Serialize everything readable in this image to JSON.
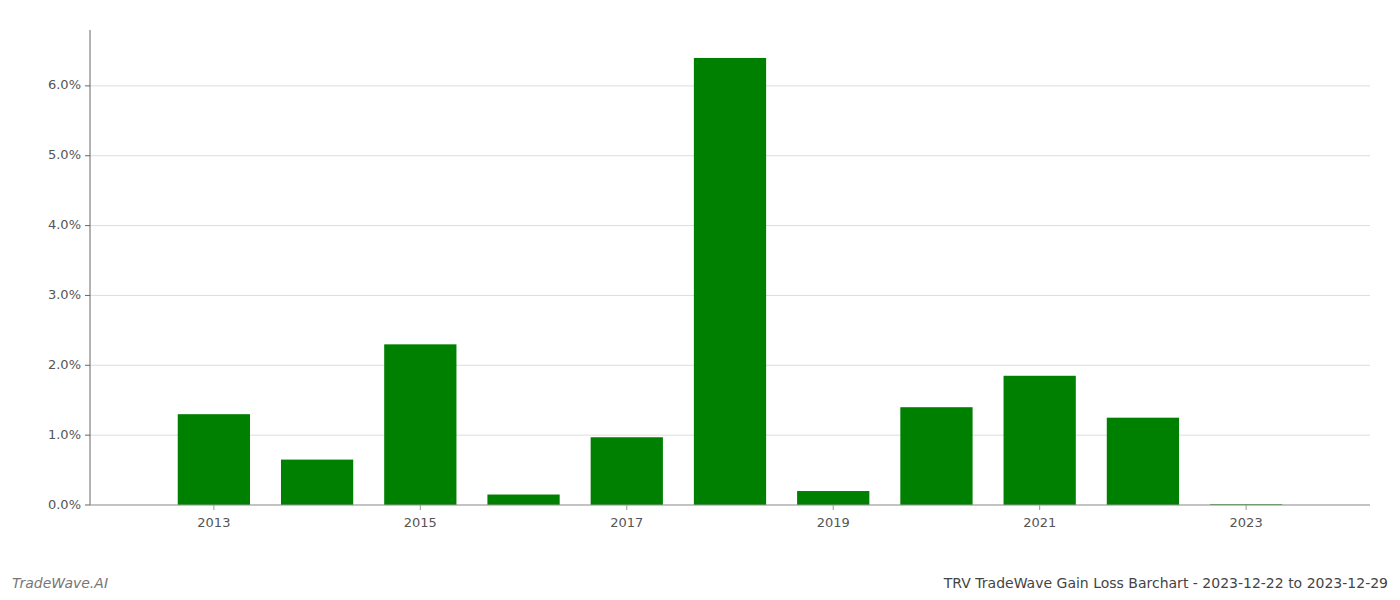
{
  "chart_data": {
    "type": "bar",
    "title": "TRV TradeWave Gain Loss Barchart - 2023-12-22 to 2023-12-29",
    "annotations": [
      "TradeWave.AI"
    ],
    "x": [
      2013,
      2014,
      2015,
      2016,
      2017,
      2018,
      2019,
      2020,
      2021,
      2022,
      2023
    ],
    "values": [
      0.013,
      0.0065,
      0.023,
      0.0015,
      0.0097,
      0.064,
      0.002,
      0.014,
      0.0185,
      0.0125,
      0.0001
    ],
    "color": "#008000",
    "xlim": [
      2011.8,
      2024.2
    ],
    "xticks": [
      2013,
      2015,
      2017,
      2019,
      2021,
      2023
    ],
    "ylim": [
      0.0,
      0.068
    ],
    "yticks": [
      {
        "value": 0.0,
        "label": "0.0%"
      },
      {
        "value": 0.01,
        "label": "1.0%"
      },
      {
        "value": 0.02,
        "label": "2.0%"
      },
      {
        "value": 0.03,
        "label": "3.0%"
      },
      {
        "value": 0.04,
        "label": "4.0%"
      },
      {
        "value": 0.05,
        "label": "5.0%"
      },
      {
        "value": 0.06,
        "label": "6.0%"
      }
    ],
    "grid": true
  }
}
